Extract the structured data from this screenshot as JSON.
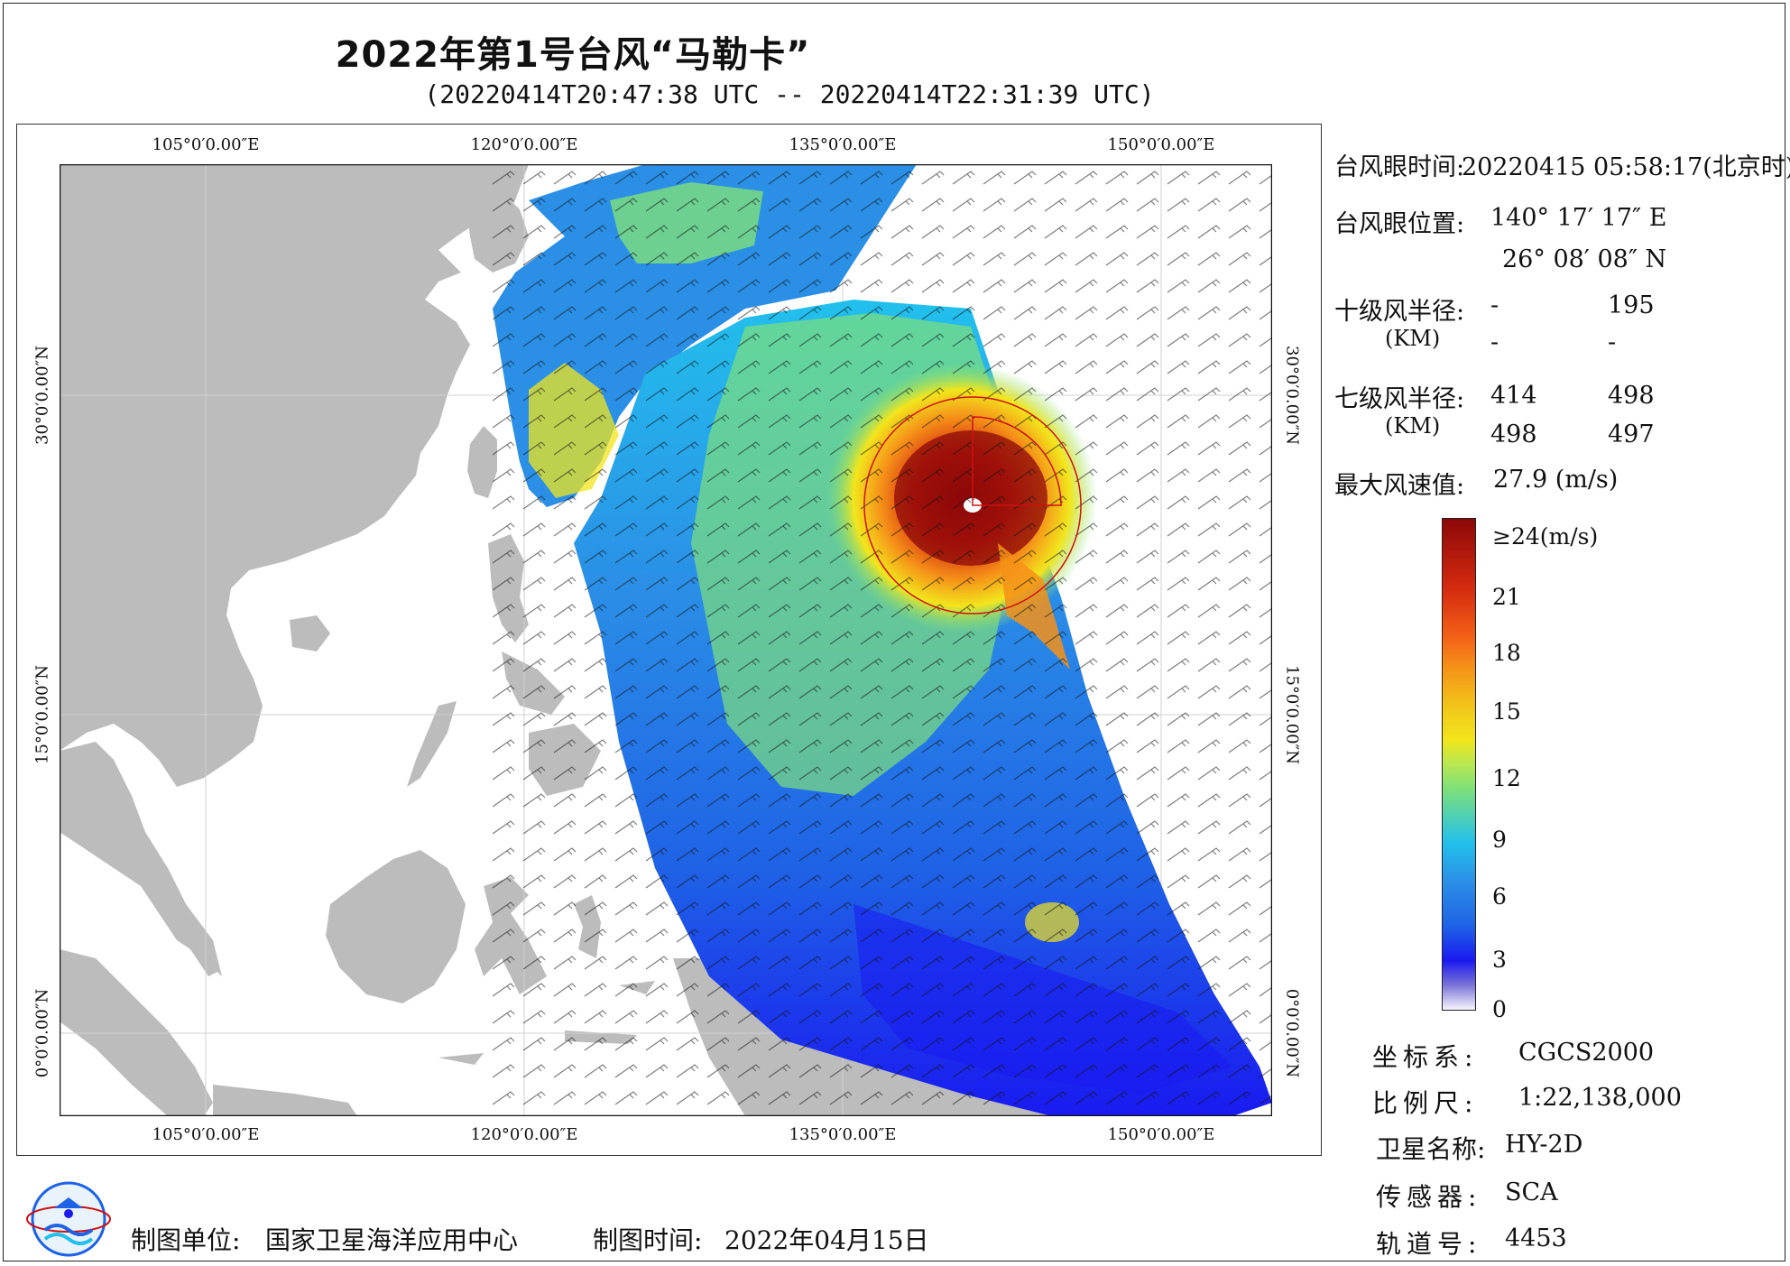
{
  "title": "2022年第1号台风“马勒卡”",
  "subtitle": "(20220414T20:47:38 UTC -- 20220414T22:31:39 UTC)",
  "map": {
    "lon_labels": [
      "105°0′0.00″E",
      "120°0′0.00″E",
      "135°0′0.00″E",
      "150°0′0.00″E"
    ],
    "lat_labels": [
      "30°0′0.00″N",
      "15°0′0.00″N",
      "0°0′0.00″N"
    ],
    "colors": {
      "land": "#bcbcbc",
      "ocean": "#ffffff",
      "grid": "#d0d0d0",
      "wind_barb": "#111111",
      "wind_radius": "#cc1111"
    }
  },
  "info": {
    "eye_time_label": "台风眼时间:",
    "eye_time_value": "20220415 05:58:17(北京时)",
    "eye_pos_label": "台风眼位置:",
    "eye_lon": "140° 17′ 17″ E",
    "eye_lat": "26° 08′ 08″ N",
    "r10_label": "十级风半径:",
    "r10_unit": "(KM)",
    "r10_values": [
      "-",
      "195",
      "-",
      "-"
    ],
    "r7_label": "七级风半径:",
    "r7_unit": "(KM)",
    "r7_values": [
      "414",
      "498",
      "498",
      "497"
    ],
    "max_label": "最大风速值:",
    "max_value": "27.9  (m/s)"
  },
  "colorbar": {
    "labels": [
      "≥24(m/s)",
      "21",
      "18",
      "15",
      "12",
      "9",
      "6",
      "3",
      "0"
    ],
    "colors": [
      "#f7f4fb",
      "#7b74d8",
      "#1a1af0",
      "#1f62e6",
      "#22c0ec",
      "#7ee07a",
      "#f2e51c",
      "#f59018",
      "#e43512",
      "#8c0808"
    ]
  },
  "meta": {
    "crs_label": "坐标系:",
    "crs_value": "CGCS2000",
    "scale_label": "比例尺:",
    "scale_value": "1:22,138,000",
    "sat_label": "卫星名称:",
    "sat_value": "HY-2D",
    "sensor_label": "传感器:",
    "sensor_value": "SCA",
    "orbit_label": "轨道号:",
    "orbit_value": "4453"
  },
  "footer": {
    "unit_label": "制图单位:",
    "unit_value": "国家卫星海洋应用中心",
    "time_label": "制图时间:",
    "time_value": "2022年04月15日"
  }
}
